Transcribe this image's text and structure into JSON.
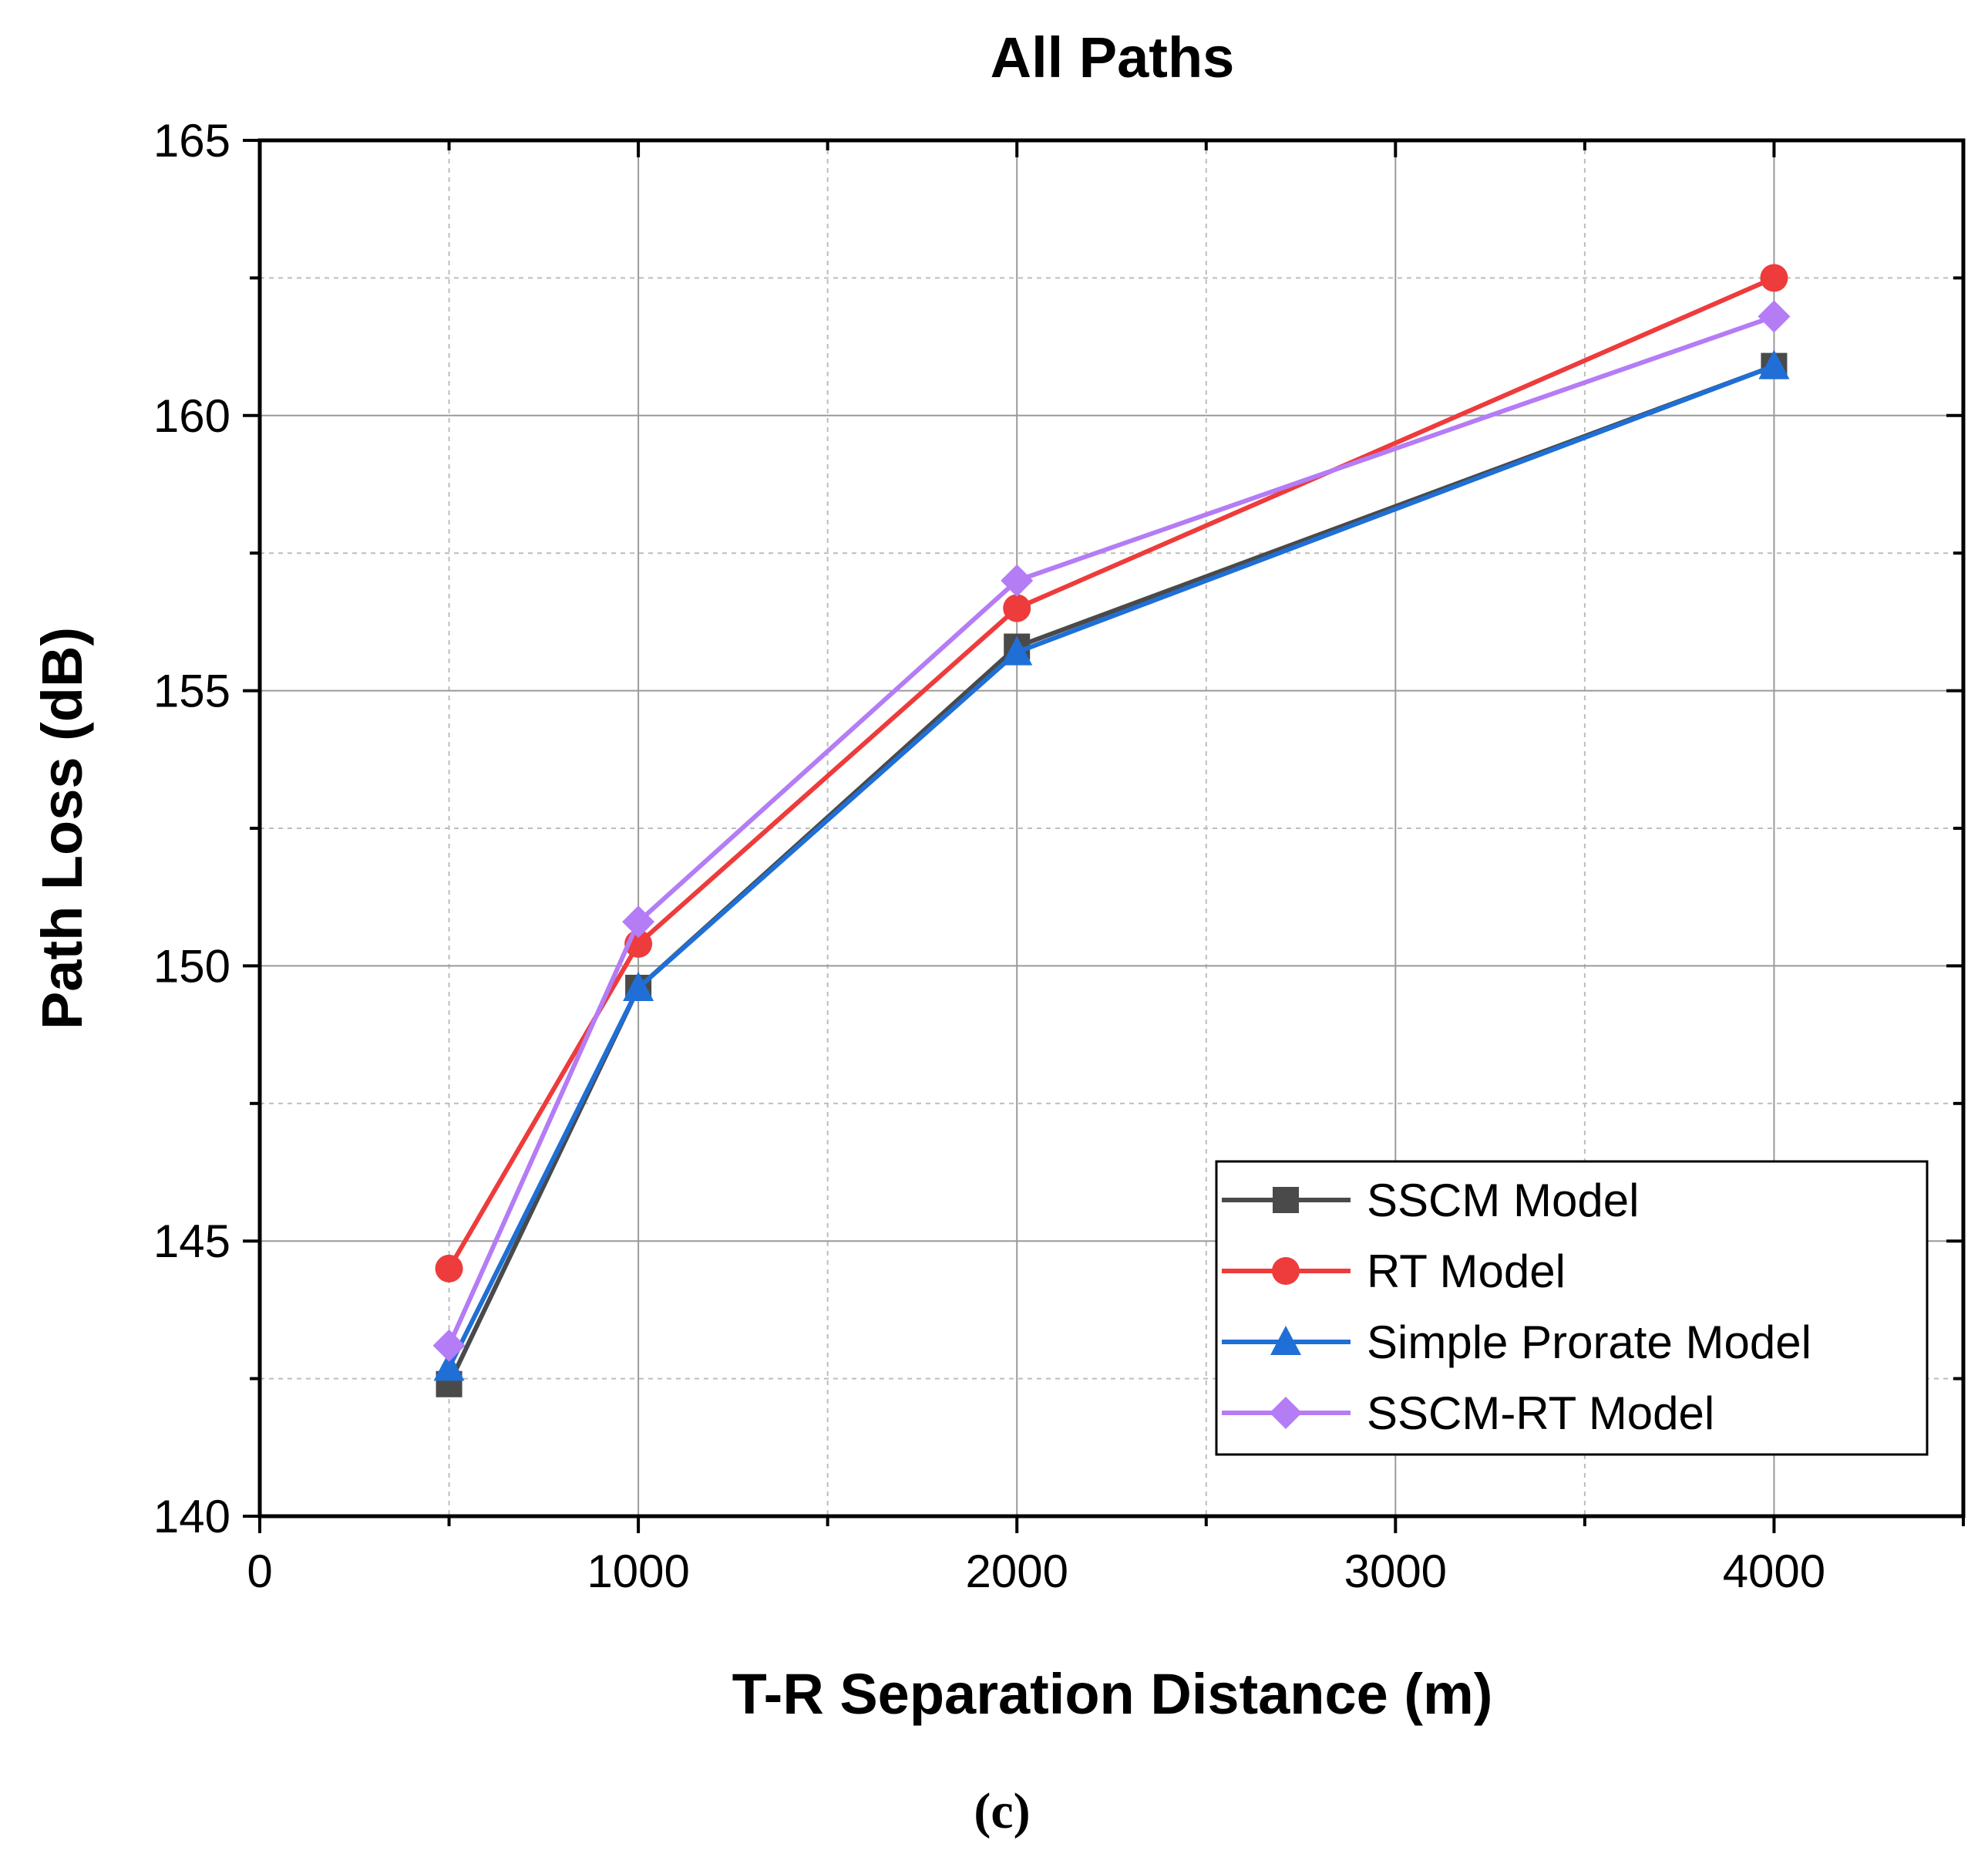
{
  "chart_data": {
    "type": "line",
    "title": "All Paths",
    "xlabel": "T-R Separation Distance (m)",
    "ylabel": "Path Loss (dB)",
    "caption": "(c)",
    "xlim": [
      0,
      4500
    ],
    "ylim": [
      140,
      165
    ],
    "x_ticks": [
      "0",
      "1000",
      "2000",
      "3000",
      "4000"
    ],
    "y_ticks": [
      "140",
      "145",
      "150",
      "155",
      "160",
      "165"
    ],
    "grid": true,
    "legend_position": "bottom-right",
    "x": [
      500,
      1000,
      2000,
      4000
    ],
    "series": [
      {
        "name": "SSCM Model",
        "marker": "square",
        "color": "#4a4a4a",
        "values": [
          142.4,
          149.6,
          155.8,
          160.9
        ]
      },
      {
        "name": "RT Model",
        "marker": "circle",
        "color": "#ee3b3b",
        "values": [
          144.5,
          150.4,
          156.5,
          162.5
        ]
      },
      {
        "name": "Simple Prorate Model",
        "marker": "triangle",
        "color": "#1f6fd6",
        "values": [
          142.7,
          149.6,
          155.7,
          160.9
        ]
      },
      {
        "name": "SSCM-RT Model",
        "marker": "diamond",
        "color": "#b47cf5",
        "values": [
          143.1,
          150.8,
          157.0,
          161.8
        ]
      }
    ]
  }
}
